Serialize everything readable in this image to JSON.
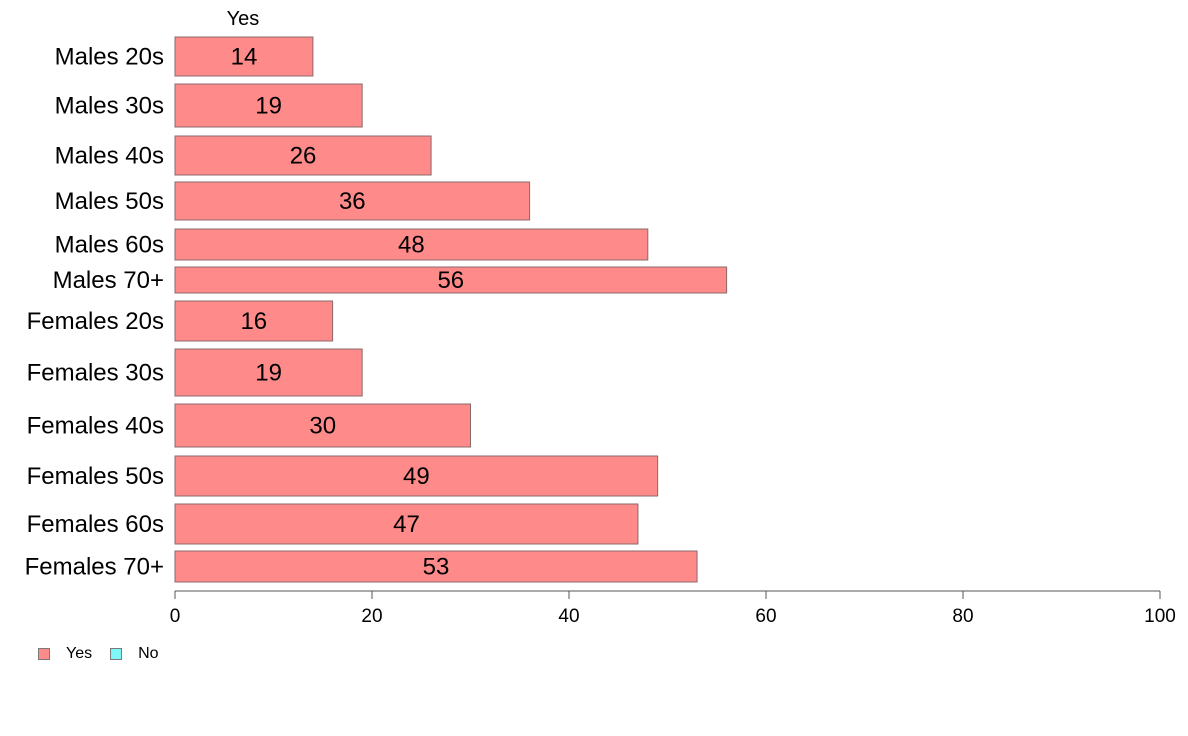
{
  "chart_data": {
    "type": "bar",
    "orientation": "horizontal",
    "series_label": "Yes",
    "categories": [
      "Males 20s",
      "Males 30s",
      "Males 40s",
      "Males 50s",
      "Males 60s",
      "Males 70+",
      "Females 20s",
      "Females 30s",
      "Females 40s",
      "Females 50s",
      "Females 60s",
      "Females 70+"
    ],
    "series": [
      {
        "name": "Yes",
        "color": "#ff8a8a",
        "values": [
          14,
          19,
          26,
          36,
          48,
          56,
          16,
          19,
          30,
          49,
          47,
          53
        ]
      }
    ],
    "data_labels": [
      "14",
      "19",
      "26",
      "36",
      "48",
      "56",
      "16",
      "19",
      "30",
      "49",
      "47",
      "53"
    ],
    "xlim": [
      0,
      100
    ],
    "x_ticks": [
      "0",
      "20",
      "40",
      "60",
      "80",
      "100"
    ],
    "grid": false,
    "legend": {
      "placement": "bottom-left",
      "entries": [
        {
          "label": "Yes",
          "color": "#ff8a8a"
        },
        {
          "label": "No",
          "color": "#7ff7f7"
        }
      ]
    }
  }
}
